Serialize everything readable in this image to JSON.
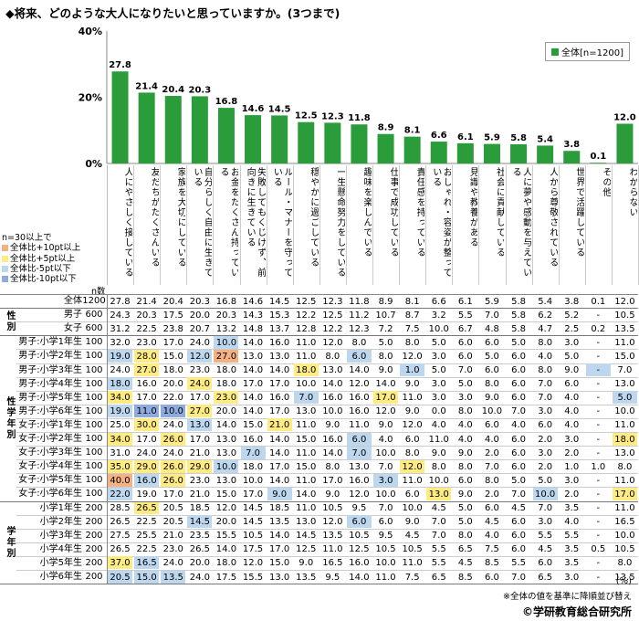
{
  "title": "◆将来、どのような大人になりたいと思っていますか。(3つまで)",
  "chart_data": {
    "type": "bar",
    "yticks": [
      "40%",
      "20%",
      "0%"
    ],
    "ylim": [
      0,
      40
    ],
    "grid": false,
    "legend_position": "top-right",
    "legend_label": "全体[n=1200]",
    "bar_color": "#2a9c3a",
    "categories": [
      "人にやさしく接している",
      "友だちがたくさんいる",
      "家族を大切にしている",
      "自分らしく自由に生きている",
      "お金をたくさん持っている",
      "失敗してもくじけず、前向きに生きている",
      "ルール・マナーを守っている",
      "穏やかに過ごしている",
      "一生懸命努力をしている",
      "趣味を楽しんでいる",
      "仕事で成功している",
      "責任感を持っている",
      "おしゃれ・容姿が整っている",
      "見識や教養がある",
      "社会に貢献している",
      "人に夢や感動を与えている",
      "人から尊敬されている",
      "世界で活躍している",
      "その他",
      "わからない"
    ],
    "series": [
      {
        "name": "全体",
        "values": [
          27.8,
          21.4,
          20.4,
          20.3,
          16.8,
          14.6,
          14.5,
          12.5,
          12.3,
          11.8,
          8.9,
          8.1,
          6.6,
          6.1,
          5.9,
          5.8,
          5.4,
          3.8,
          0.1,
          12.0
        ]
      }
    ],
    "value_labels": [
      "27.8",
      "21.4",
      "20.4",
      "20.3",
      "16.8",
      "14.6",
      "14.5",
      "12.5",
      "12.3",
      "11.8",
      "8.9",
      "8.1",
      "6.6",
      "6.1",
      "5.9",
      "5.8",
      "5.4",
      "3.8",
      "0.1",
      "12.0"
    ]
  },
  "notes": {
    "header": "n=30以上で",
    "items": [
      {
        "label": "全体比+10pt以上",
        "color": "#f4b183"
      },
      {
        "label": "全体比+5pt以上",
        "color": "#ffeb84"
      },
      {
        "label": "全体比-5pt以下",
        "color": "#bdd7ee"
      },
      {
        "label": "全体比-10pt以下",
        "color": "#8faadc"
      }
    ]
  },
  "n_header": "n数",
  "highlight_colors": {
    "p10": "#f4b183",
    "p5": "#ffeb84",
    "m5": "#bdd7ee",
    "m10": "#8faadc"
  },
  "groups": [
    {
      "label": "",
      "rows": [
        {
          "label": "全体",
          "n": "1200",
          "values": [
            "27.8",
            "21.4",
            "20.4",
            "20.3",
            "16.8",
            "14.6",
            "14.5",
            "12.5",
            "12.3",
            "11.8",
            "8.9",
            "8.1",
            "6.6",
            "6.1",
            "5.9",
            "5.8",
            "5.4",
            "3.8",
            "0.1",
            "12.0"
          ],
          "hl": {}
        }
      ]
    },
    {
      "label": "性別",
      "rows": [
        {
          "label": "男子",
          "n": "600",
          "values": [
            "24.3",
            "20.3",
            "17.5",
            "20.0",
            "20.3",
            "14.3",
            "15.3",
            "12.2",
            "12.5",
            "11.2",
            "10.7",
            "8.7",
            "3.2",
            "5.5",
            "7.0",
            "5.8",
            "6.2",
            "5.2",
            "-",
            "10.5"
          ],
          "hl": {}
        },
        {
          "label": "女子",
          "n": "600",
          "values": [
            "31.2",
            "22.5",
            "23.8",
            "20.7",
            "13.2",
            "14.8",
            "13.7",
            "12.8",
            "12.2",
            "12.3",
            "7.2",
            "7.5",
            "10.0",
            "6.7",
            "4.8",
            "5.8",
            "4.7",
            "2.5",
            "0.2",
            "13.5"
          ],
          "hl": {}
        }
      ]
    },
    {
      "label": "性学年別",
      "rows": [
        {
          "label": "男子:小学1年生",
          "n": "100",
          "values": [
            "32.0",
            "23.0",
            "17.0",
            "24.0",
            "10.0",
            "14.0",
            "16.0",
            "11.0",
            "12.0",
            "8.0",
            "5.0",
            "8.0",
            "5.0",
            "6.0",
            "6.0",
            "5.0",
            "8.0",
            "3.0",
            "-",
            "11.0"
          ],
          "hl": {
            "4": "m5"
          }
        },
        {
          "label": "男子:小学2年生",
          "n": "100",
          "values": [
            "19.0",
            "28.0",
            "15.0",
            "12.0",
            "27.0",
            "13.0",
            "13.0",
            "11.0",
            "8.0",
            "6.0",
            "8.0",
            "12.0",
            "3.0",
            "6.0",
            "5.0",
            "6.0",
            "4.0",
            "5.0",
            "-",
            "15.0"
          ],
          "hl": {
            "0": "m5",
            "1": "p5",
            "3": "m5",
            "4": "p10",
            "9": "m5"
          }
        },
        {
          "label": "男子:小学3年生",
          "n": "100",
          "values": [
            "24.0",
            "27.0",
            "18.0",
            "23.0",
            "18.0",
            "14.0",
            "14.0",
            "18.0",
            "13.0",
            "14.0",
            "9.0",
            "1.0",
            "5.0",
            "7.0",
            "6.0",
            "6.0",
            "8.0",
            "9.0",
            "-",
            "7.0"
          ],
          "hl": {
            "1": "p5",
            "7": "p5",
            "11": "m5",
            "18": "m5"
          }
        },
        {
          "label": "男子:小学4年生",
          "n": "100",
          "values": [
            "18.0",
            "16.0",
            "20.0",
            "24.0",
            "18.0",
            "17.0",
            "17.0",
            "10.0",
            "14.0",
            "12.0",
            "14.0",
            "9.0",
            "3.0",
            "5.0",
            "8.0",
            "6.0",
            "7.0",
            "6.0",
            "-",
            "13.0"
          ],
          "hl": {
            "0": "m5",
            "3": "p5"
          }
        },
        {
          "label": "男子:小学5年生",
          "n": "100",
          "values": [
            "34.0",
            "17.0",
            "22.0",
            "17.0",
            "23.0",
            "14.0",
            "16.0",
            "7.0",
            "16.0",
            "16.0",
            "17.0",
            "11.0",
            "3.0",
            "3.0",
            "9.0",
            "6.0",
            "7.0",
            "4.0",
            "-",
            "5.0"
          ],
          "hl": {
            "0": "p5",
            "4": "p5",
            "7": "m5",
            "10": "p5",
            "19": "m5"
          }
        },
        {
          "label": "男子:小学6年生",
          "n": "100",
          "values": [
            "19.0",
            "11.0",
            "10.0",
            "27.0",
            "20.0",
            "14.0",
            "17.0",
            "13.0",
            "10.0",
            "16.0",
            "12.0",
            "9.0",
            "0.0",
            "8.0",
            "10.0",
            "7.0",
            "3.0",
            "4.0",
            "-",
            "10.0"
          ],
          "hl": {
            "0": "m5",
            "1": "m10",
            "2": "m10",
            "3": "p5"
          }
        },
        {
          "label": "女子:小学1年生",
          "n": "100",
          "values": [
            "25.0",
            "30.0",
            "24.0",
            "13.0",
            "14.0",
            "15.0",
            "21.0",
            "11.0",
            "9.0",
            "11.0",
            "9.0",
            "12.0",
            "4.0",
            "4.0",
            "6.0",
            "4.0",
            "6.0",
            "4.0",
            "-",
            "11.0"
          ],
          "hl": {
            "1": "p5",
            "3": "m5",
            "6": "p5"
          }
        },
        {
          "label": "女子:小学2年生",
          "n": "100",
          "values": [
            "34.0",
            "17.0",
            "26.0",
            "17.0",
            "13.0",
            "16.0",
            "14.0",
            "15.0",
            "16.0",
            "6.0",
            "4.0",
            "6.0",
            "11.0",
            "4.0",
            "4.0",
            "6.0",
            "2.0",
            "3.0",
            "-",
            "18.0"
          ],
          "hl": {
            "0": "p5",
            "2": "p5",
            "9": "m5",
            "19": "p5"
          }
        },
        {
          "label": "女子:小学3年生",
          "n": "100",
          "values": [
            "31.0",
            "24.0",
            "24.0",
            "21.0",
            "13.0",
            "7.0",
            "14.0",
            "11.0",
            "14.0",
            "7.0",
            "10.0",
            "8.0",
            "9.0",
            "9.0",
            "2.0",
            "6.0",
            "3.0",
            "2.0",
            "-",
            "13.0"
          ],
          "hl": {
            "5": "m5",
            "9": "m5"
          }
        },
        {
          "label": "女子:小学4年生",
          "n": "100",
          "values": [
            "35.0",
            "29.0",
            "26.0",
            "29.0",
            "10.0",
            "18.0",
            "17.0",
            "15.0",
            "8.0",
            "13.0",
            "7.0",
            "12.0",
            "8.0",
            "8.0",
            "7.0",
            "6.0",
            "2.0",
            "1.0",
            "1.0",
            "8.0"
          ],
          "hl": {
            "0": "p5",
            "1": "p5",
            "2": "p5",
            "3": "p5",
            "4": "m5",
            "11": "p5"
          }
        },
        {
          "label": "女子:小学5年生",
          "n": "100",
          "values": [
            "40.0",
            "16.0",
            "26.0",
            "23.0",
            "13.0",
            "10.0",
            "14.0",
            "11.0",
            "17.0",
            "16.0",
            "3.0",
            "11.0",
            "10.0",
            "6.0",
            "8.0",
            "5.0",
            "5.0",
            "3.0",
            "-",
            "11.0"
          ],
          "hl": {
            "0": "p10",
            "1": "m5",
            "2": "p5",
            "10": "m5"
          }
        },
        {
          "label": "女子:小学6年生",
          "n": "100",
          "values": [
            "22.0",
            "19.0",
            "17.0",
            "21.0",
            "15.0",
            "17.0",
            "9.0",
            "14.0",
            "9.0",
            "12.0",
            "10.0",
            "6.0",
            "13.0",
            "9.0",
            "2.0",
            "7.0",
            "10.0",
            "2.0",
            "-",
            "17.0"
          ],
          "hl": {
            "0": "m5",
            "6": "m5",
            "12": "p5",
            "16": "m5",
            "19": "p5"
          }
        }
      ]
    },
    {
      "label": "学年別",
      "rows": [
        {
          "label": "小学1年生",
          "n": "200",
          "values": [
            "28.5",
            "26.5",
            "20.5",
            "18.5",
            "12.0",
            "14.5",
            "18.5",
            "11.0",
            "10.5",
            "9.5",
            "7.0",
            "10.0",
            "4.5",
            "5.0",
            "6.0",
            "4.5",
            "7.0",
            "3.5",
            "-",
            "11.0"
          ],
          "hl": {
            "1": "p5"
          }
        },
        {
          "label": "小学2年生",
          "n": "200",
          "values": [
            "26.5",
            "22.5",
            "20.5",
            "14.5",
            "20.0",
            "14.5",
            "13.5",
            "13.0",
            "12.0",
            "6.0",
            "6.0",
            "9.0",
            "7.0",
            "5.0",
            "4.5",
            "6.0",
            "3.0",
            "4.0",
            "-",
            "16.5"
          ],
          "hl": {
            "3": "m5",
            "9": "m5"
          }
        },
        {
          "label": "小学3年生",
          "n": "200",
          "values": [
            "27.5",
            "25.5",
            "21.0",
            "23.5",
            "15.5",
            "10.5",
            "14.0",
            "14.5",
            "13.5",
            "10.5",
            "9.5",
            "4.5",
            "7.0",
            "8.0",
            "4.0",
            "6.0",
            "5.5",
            "5.5",
            "-",
            "10.0"
          ],
          "hl": {}
        },
        {
          "label": "小学4年生",
          "n": "200",
          "values": [
            "26.5",
            "22.5",
            "23.0",
            "26.5",
            "14.0",
            "17.5",
            "17.0",
            "12.5",
            "11.0",
            "12.5",
            "10.5",
            "10.5",
            "5.5",
            "6.5",
            "7.5",
            "6.0",
            "4.5",
            "3.5",
            "0.5",
            "10.5"
          ],
          "hl": {}
        },
        {
          "label": "小学5年生",
          "n": "200",
          "values": [
            "37.0",
            "16.5",
            "24.0",
            "20.0",
            "18.0",
            "12.0",
            "15.0",
            "9.0",
            "16.5",
            "16.0",
            "10.0",
            "11.0",
            "5.5",
            "4.5",
            "8.5",
            "5.5",
            "6.0",
            "3.5",
            "-",
            "8.0"
          ],
          "hl": {
            "0": "p5",
            "1": "m5"
          }
        },
        {
          "label": "小学6年生",
          "n": "200",
          "values": [
            "20.5",
            "15.0",
            "13.5",
            "24.0",
            "17.5",
            "15.5",
            "13.0",
            "13.5",
            "9.5",
            "14.0",
            "11.0",
            "7.5",
            "6.5",
            "8.5",
            "6.0",
            "7.0",
            "6.5",
            "3.0",
            "-",
            "13.5"
          ],
          "hl": {
            "0": "m5",
            "1": "m5",
            "2": "m5"
          }
        }
      ]
    }
  ],
  "pct_unit": "(%)",
  "footnote": "※全体の値を基準に降順並び替え",
  "copyright": "©学研教育総合研究所"
}
